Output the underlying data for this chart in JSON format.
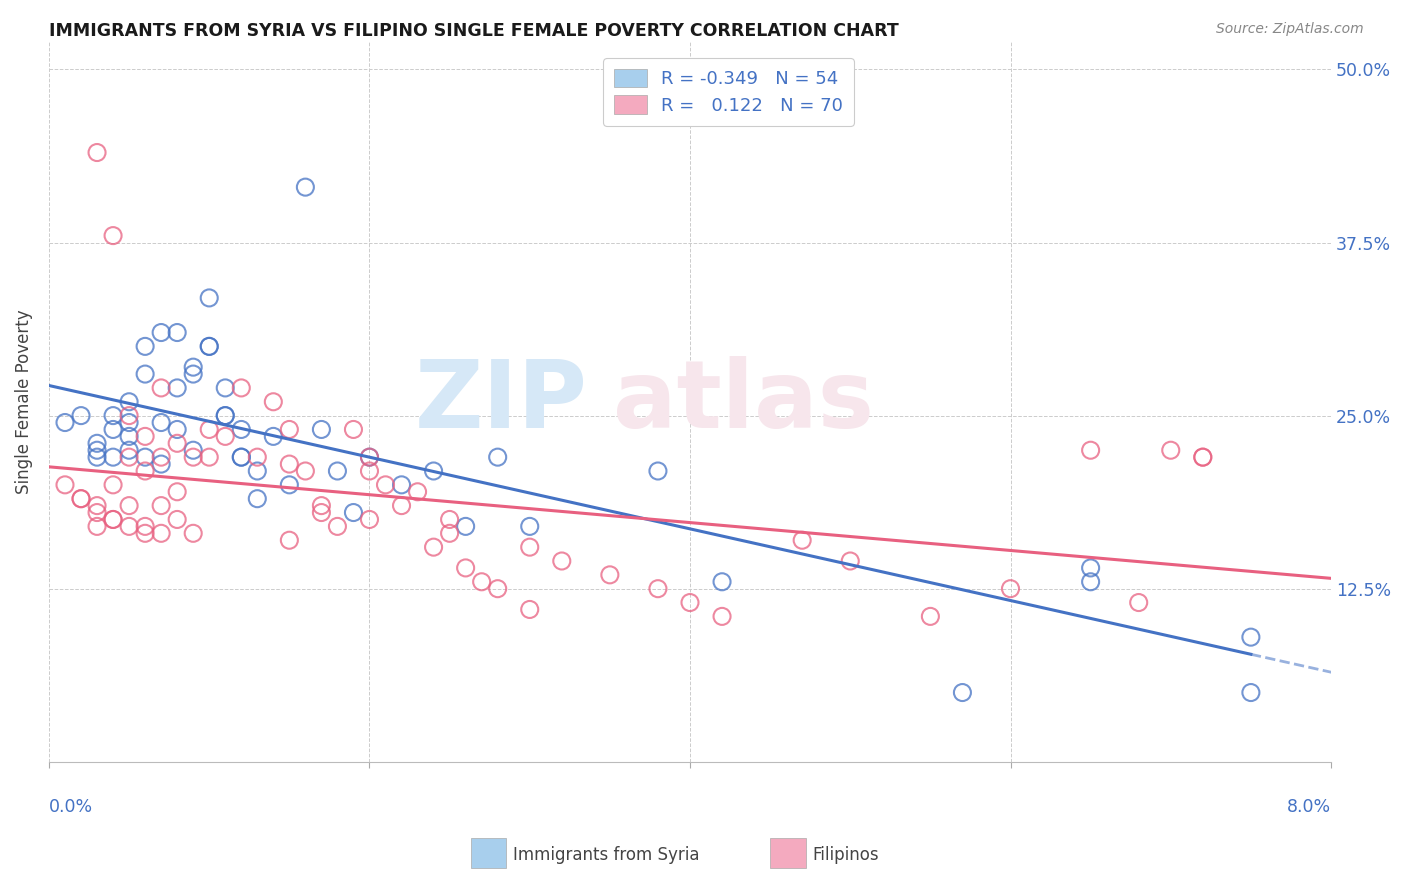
{
  "title": "IMMIGRANTS FROM SYRIA VS FILIPINO SINGLE FEMALE POVERTY CORRELATION CHART",
  "source": "Source: ZipAtlas.com",
  "ylabel": "Single Female Poverty",
  "y_ticks": [
    0.0,
    0.125,
    0.25,
    0.375,
    0.5
  ],
  "y_tick_labels": [
    "",
    "12.5%",
    "25.0%",
    "37.5%",
    "50.0%"
  ],
  "x_range": [
    0.0,
    0.08
  ],
  "y_range": [
    0.0,
    0.52
  ],
  "color_syria": "#A8CFED",
  "color_filipinos": "#F4AABF",
  "color_line_syria": "#4472C4",
  "color_line_filipinos": "#E86080",
  "watermark_zip_color": "#D6E8F7",
  "watermark_atlas_color": "#F7E6EC",
  "syria_scatter_x": [
    0.001,
    0.002,
    0.003,
    0.003,
    0.004,
    0.004,
    0.005,
    0.005,
    0.005,
    0.006,
    0.006,
    0.007,
    0.007,
    0.008,
    0.008,
    0.009,
    0.009,
    0.01,
    0.01,
    0.011,
    0.011,
    0.012,
    0.012,
    0.013,
    0.014,
    0.015,
    0.016,
    0.017,
    0.018,
    0.019,
    0.02,
    0.022,
    0.024,
    0.026,
    0.028,
    0.03,
    0.003,
    0.004,
    0.005,
    0.006,
    0.007,
    0.008,
    0.009,
    0.01,
    0.011,
    0.012,
    0.013,
    0.038,
    0.042,
    0.057,
    0.065,
    0.075,
    0.075,
    0.065
  ],
  "syria_scatter_y": [
    0.245,
    0.25,
    0.225,
    0.23,
    0.25,
    0.24,
    0.26,
    0.245,
    0.225,
    0.3,
    0.28,
    0.245,
    0.215,
    0.31,
    0.27,
    0.285,
    0.225,
    0.335,
    0.3,
    0.27,
    0.25,
    0.24,
    0.22,
    0.21,
    0.235,
    0.2,
    0.415,
    0.24,
    0.21,
    0.18,
    0.22,
    0.2,
    0.21,
    0.17,
    0.22,
    0.17,
    0.22,
    0.22,
    0.235,
    0.22,
    0.31,
    0.24,
    0.28,
    0.3,
    0.25,
    0.22,
    0.19,
    0.21,
    0.13,
    0.05,
    0.14,
    0.05,
    0.09,
    0.13
  ],
  "filipinos_scatter_x": [
    0.001,
    0.002,
    0.003,
    0.003,
    0.004,
    0.004,
    0.005,
    0.005,
    0.006,
    0.006,
    0.007,
    0.007,
    0.008,
    0.008,
    0.009,
    0.01,
    0.01,
    0.011,
    0.012,
    0.013,
    0.014,
    0.015,
    0.016,
    0.017,
    0.018,
    0.019,
    0.02,
    0.021,
    0.022,
    0.023,
    0.024,
    0.025,
    0.026,
    0.027,
    0.028,
    0.03,
    0.032,
    0.035,
    0.038,
    0.04,
    0.042,
    0.047,
    0.05,
    0.055,
    0.06,
    0.065,
    0.068,
    0.07,
    0.072,
    0.015,
    0.017,
    0.02,
    0.025,
    0.002,
    0.003,
    0.004,
    0.005,
    0.006,
    0.007,
    0.003,
    0.004,
    0.005,
    0.006,
    0.007,
    0.008,
    0.009,
    0.015,
    0.02,
    0.03,
    0.072
  ],
  "filipinos_scatter_y": [
    0.2,
    0.19,
    0.185,
    0.17,
    0.2,
    0.175,
    0.22,
    0.185,
    0.21,
    0.165,
    0.22,
    0.185,
    0.23,
    0.195,
    0.22,
    0.24,
    0.22,
    0.235,
    0.27,
    0.22,
    0.26,
    0.24,
    0.21,
    0.185,
    0.17,
    0.24,
    0.22,
    0.2,
    0.185,
    0.195,
    0.155,
    0.165,
    0.14,
    0.13,
    0.125,
    0.155,
    0.145,
    0.135,
    0.125,
    0.115,
    0.105,
    0.16,
    0.145,
    0.105,
    0.125,
    0.225,
    0.115,
    0.225,
    0.22,
    0.16,
    0.18,
    0.175,
    0.175,
    0.19,
    0.18,
    0.175,
    0.17,
    0.17,
    0.165,
    0.44,
    0.38,
    0.25,
    0.235,
    0.27,
    0.175,
    0.165,
    0.215,
    0.21,
    0.11,
    0.22
  ]
}
